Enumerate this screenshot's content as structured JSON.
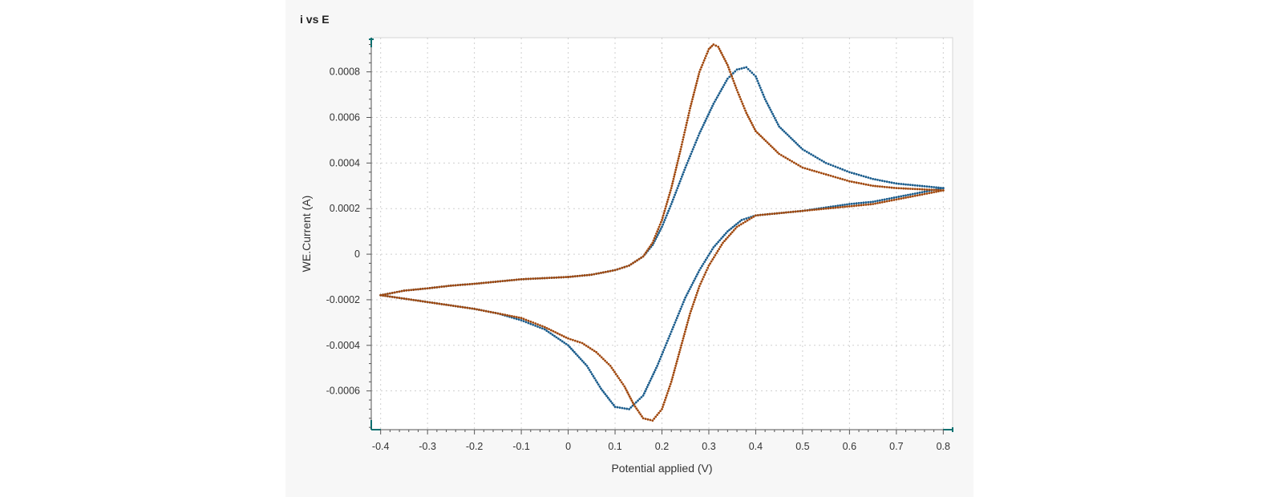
{
  "panel": {
    "title": "i vs E"
  },
  "colors": {
    "series_blue": "#1a5c8c",
    "series_orange": "#a0470c",
    "axis_accent": "#0e7070",
    "grid": "#cfcfcf",
    "plot_bg": "#ffffff"
  },
  "chart_data": {
    "type": "scatter",
    "title": "i vs E",
    "xlabel": "Potential applied (V)",
    "ylabel": "WE.Current (A)",
    "xlim": [
      -0.42,
      0.82
    ],
    "ylim": [
      -0.00077,
      0.00095
    ],
    "xticks": [
      -0.4,
      -0.3,
      -0.2,
      -0.1,
      0,
      0.1,
      0.2,
      0.3,
      0.4,
      0.5,
      0.6,
      0.7,
      0.8
    ],
    "xtick_labels": [
      "-0.4",
      "-0.3",
      "-0.2",
      "-0.1",
      "0",
      "0.1",
      "0.2",
      "0.3",
      "0.4",
      "0.5",
      "0.6",
      "0.7",
      "0.8"
    ],
    "yticks": [
      -0.0006,
      -0.0004,
      -0.0002,
      0,
      0.0002,
      0.0004,
      0.0006,
      0.0008
    ],
    "ytick_labels": [
      "-0.0006",
      "-0.0004",
      "-0.0002",
      "0",
      "0.0002",
      "0.0004",
      "0.0006",
      "0.0008"
    ],
    "grid": true,
    "series": [
      {
        "color": "#1a5c8c",
        "x": [
          0,
          0.05,
          0.1,
          0.13,
          0.16,
          0.18,
          0.2,
          0.22,
          0.25,
          0.28,
          0.31,
          0.34,
          0.36,
          0.38,
          0.4,
          0.42,
          0.45,
          0.5,
          0.55,
          0.6,
          0.65,
          0.7,
          0.75,
          0.8,
          0.8,
          0.75,
          0.7,
          0.65,
          0.6,
          0.55,
          0.5,
          0.45,
          0.4,
          0.37,
          0.34,
          0.31,
          0.28,
          0.25,
          0.22,
          0.19,
          0.16,
          0.13,
          0.1,
          0.07,
          0.04,
          0.0,
          -0.05,
          -0.1,
          -0.15,
          -0.2,
          -0.25,
          -0.3,
          -0.35,
          -0.4,
          -0.4,
          -0.35,
          -0.3,
          -0.25,
          -0.2,
          -0.15,
          -0.1,
          -0.05,
          0
        ],
        "y": [
          -0.0001,
          -9e-05,
          -7e-05,
          -5e-05,
          -1e-05,
          4e-05,
          0.00012,
          0.00022,
          0.00038,
          0.00053,
          0.00066,
          0.00077,
          0.00081,
          0.00082,
          0.00078,
          0.00068,
          0.00056,
          0.00046,
          0.0004,
          0.00036,
          0.00033,
          0.00031,
          0.0003,
          0.00029,
          0.00029,
          0.00027,
          0.00025,
          0.00023,
          0.00022,
          0.000205,
          0.00019,
          0.00018,
          0.00017,
          0.00015,
          0.0001,
          3e-05,
          -7e-05,
          -0.00019,
          -0.00034,
          -0.00049,
          -0.00062,
          -0.00068,
          -0.00067,
          -0.00059,
          -0.00049,
          -0.0004,
          -0.00033,
          -0.00029,
          -0.00026,
          -0.00024,
          -0.000225,
          -0.00021,
          -0.000195,
          -0.00018,
          -0.00018,
          -0.00016,
          -0.00015,
          -0.000138,
          -0.00013,
          -0.00012,
          -0.00011,
          -0.000105,
          -0.0001
        ]
      },
      {
        "color": "#a0470c",
        "x": [
          0,
          0.05,
          0.1,
          0.13,
          0.16,
          0.18,
          0.2,
          0.22,
          0.24,
          0.26,
          0.28,
          0.3,
          0.31,
          0.32,
          0.34,
          0.36,
          0.38,
          0.4,
          0.45,
          0.5,
          0.55,
          0.6,
          0.65,
          0.7,
          0.75,
          0.8,
          0.8,
          0.75,
          0.7,
          0.65,
          0.6,
          0.55,
          0.5,
          0.45,
          0.4,
          0.36,
          0.33,
          0.3,
          0.28,
          0.26,
          0.24,
          0.22,
          0.2,
          0.18,
          0.16,
          0.14,
          0.12,
          0.09,
          0.06,
          0.03,
          0.0,
          -0.05,
          -0.1,
          -0.15,
          -0.2,
          -0.25,
          -0.3,
          -0.35,
          -0.4,
          -0.4,
          -0.35,
          -0.3,
          -0.25,
          -0.2,
          -0.15,
          -0.1,
          -0.05,
          0
        ],
        "y": [
          -0.0001,
          -9e-05,
          -7e-05,
          -5e-05,
          -1e-05,
          5e-05,
          0.00015,
          0.00029,
          0.00046,
          0.00064,
          0.0008,
          0.0009,
          0.00092,
          0.00091,
          0.00083,
          0.00072,
          0.00062,
          0.00054,
          0.00044,
          0.00038,
          0.00035,
          0.00032,
          0.0003,
          0.00029,
          0.000285,
          0.00028,
          0.00028,
          0.00026,
          0.00024,
          0.00022,
          0.00021,
          0.0002,
          0.00019,
          0.00018,
          0.00017,
          0.00012,
          5e-05,
          -5e-05,
          -0.00014,
          -0.00026,
          -0.00041,
          -0.00056,
          -0.00068,
          -0.00073,
          -0.00072,
          -0.00066,
          -0.00058,
          -0.00049,
          -0.00043,
          -0.00039,
          -0.00037,
          -0.00032,
          -0.00028,
          -0.00026,
          -0.00024,
          -0.000225,
          -0.00021,
          -0.000195,
          -0.00018,
          -0.00018,
          -0.00016,
          -0.00015,
          -0.000138,
          -0.00013,
          -0.00012,
          -0.00011,
          -0.000105,
          -0.0001
        ]
      }
    ]
  }
}
